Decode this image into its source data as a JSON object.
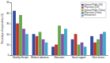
{
  "chart_data": {
    "type": "bar",
    "y_label": "Percentage of respondents (%)",
    "categories": [
      "Healthy lifestyle",
      "Medical advances",
      "Education",
      "Social support",
      "Other factors"
    ],
    "series": [
      {
        "name": "General Public (US)",
        "color": "#2f4b9c",
        "values": [
          42,
          20,
          8,
          15,
          18
        ]
      },
      {
        "name": "Physicians (US)",
        "color": "#c0392b",
        "values": [
          30,
          18,
          10,
          20,
          12
        ]
      },
      {
        "name": "General Public (China)",
        "color": "#6aa84f",
        "values": [
          38,
          22,
          28,
          10,
          15
        ]
      },
      {
        "name": "Physicians (China)",
        "color": "#7e57a8",
        "values": [
          25,
          15,
          20,
          12,
          20
        ]
      },
      {
        "name": "Researchers",
        "color": "#3fa9c9",
        "values": [
          20,
          12,
          25,
          8,
          22
        ]
      }
    ],
    "ylim": [
      0,
      50
    ],
    "yticks": [
      0,
      10,
      20,
      30,
      40,
      50
    ],
    "legend": "upper right",
    "grid": false
  }
}
